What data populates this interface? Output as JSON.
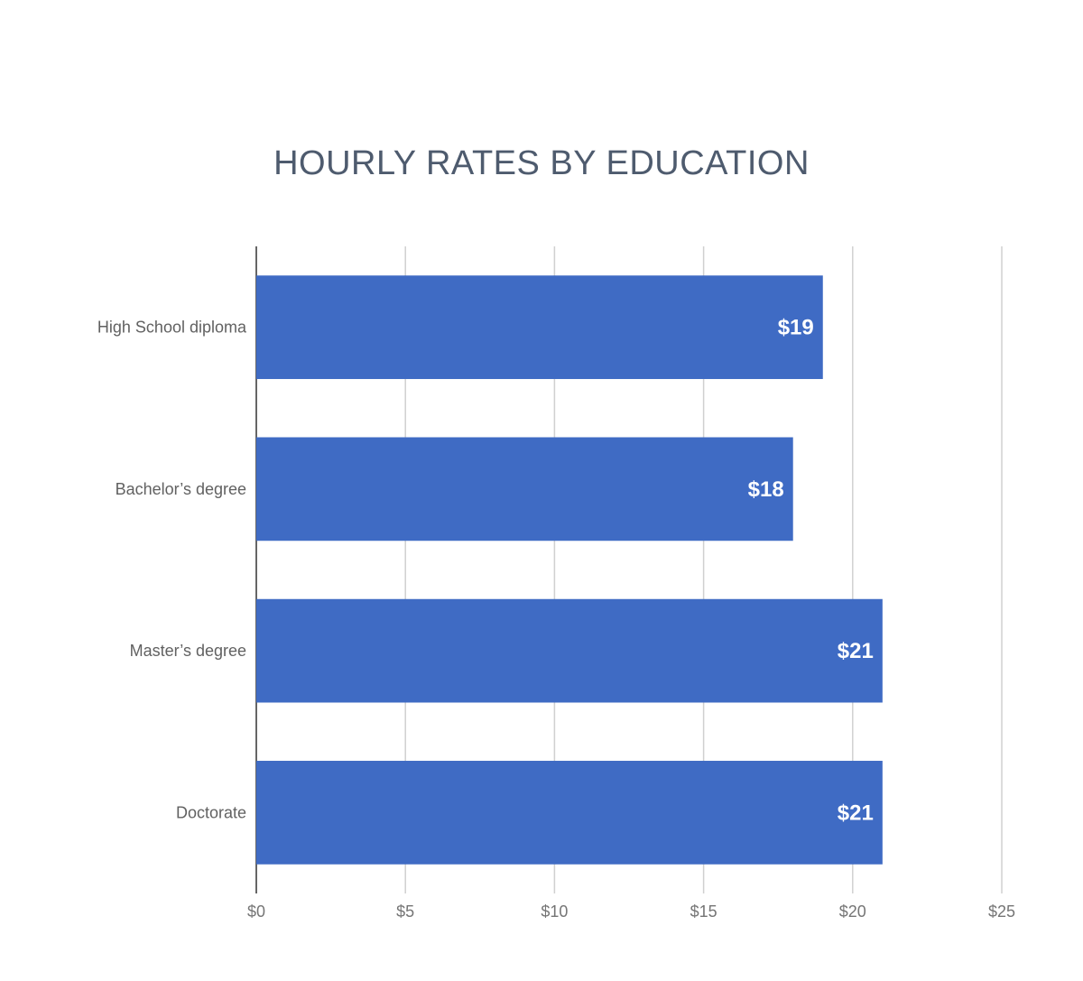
{
  "chart_data": {
    "type": "bar",
    "orientation": "horizontal",
    "title": "HOURLY RATES BY EDUCATION",
    "categories": [
      "High School diploma",
      "Bachelor’s degree",
      "Master’s degree",
      "Doctorate"
    ],
    "values": [
      19,
      18,
      21,
      21
    ],
    "data_labels": [
      "$19",
      "$18",
      "$21",
      "$21"
    ],
    "xlim": [
      0,
      25
    ],
    "x_ticks": [
      0,
      5,
      10,
      15,
      20,
      25
    ],
    "x_tick_labels": [
      "$0",
      "$5",
      "$10",
      "$15",
      "$20",
      "$25"
    ],
    "xlabel": "",
    "ylabel": "",
    "grid": true,
    "legend": "none",
    "colors": {
      "bar": "#3f6bc4"
    }
  }
}
